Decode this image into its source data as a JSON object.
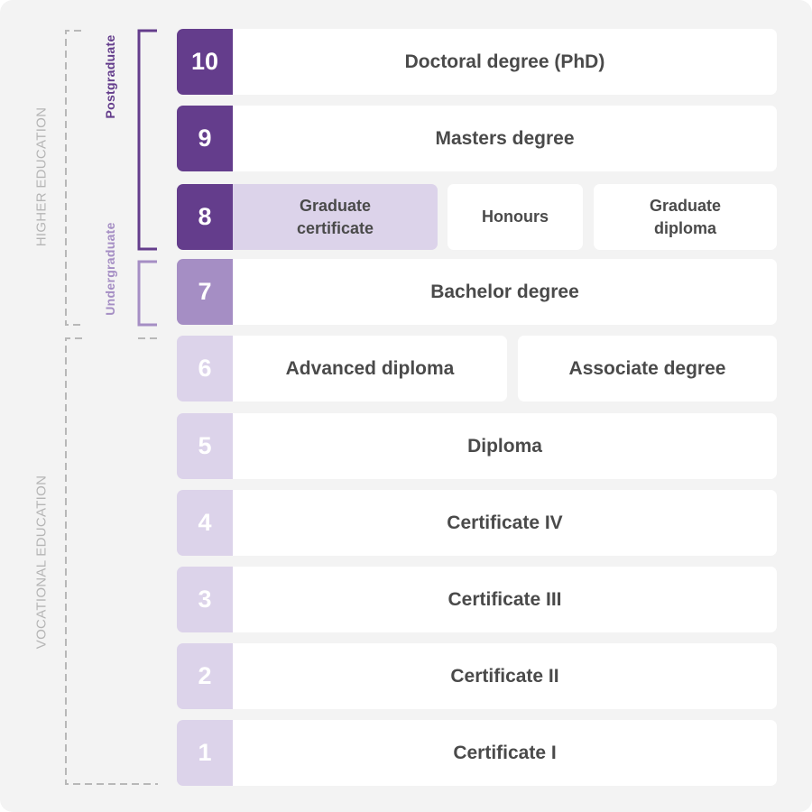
{
  "side_labels": {
    "higher_education": "HIGHER EDUCATION",
    "vocational_education": "VOCATIONAL  EDUCATION",
    "postgraduate": "Postgraduate",
    "undergraduate": "Undergraduate"
  },
  "colors": {
    "dark_purple": "#643d8c",
    "mid_purple": "#a58ec4",
    "light_purple": "#dcd3ea",
    "text_gray": "#4a4a4a",
    "label_gray": "#b5b5b5"
  },
  "levels": [
    {
      "level": "10",
      "cells": [
        "Doctoral degree (PhD)"
      ]
    },
    {
      "level": "9",
      "cells": [
        "Masters degree"
      ]
    },
    {
      "level": "8",
      "cells": [
        "Graduate\ncertificate",
        "Honours",
        "Graduate\ndiploma"
      ]
    },
    {
      "level": "7",
      "cells": [
        "Bachelor degree"
      ]
    },
    {
      "level": "6",
      "cells": [
        "Advanced diploma",
        "Associate degree"
      ]
    },
    {
      "level": "5",
      "cells": [
        "Diploma"
      ]
    },
    {
      "level": "4",
      "cells": [
        "Certificate IV"
      ]
    },
    {
      "level": "3",
      "cells": [
        "Certificate III"
      ]
    },
    {
      "level": "2",
      "cells": [
        "Certificate II"
      ]
    },
    {
      "level": "1",
      "cells": [
        "Certificate I"
      ]
    }
  ]
}
